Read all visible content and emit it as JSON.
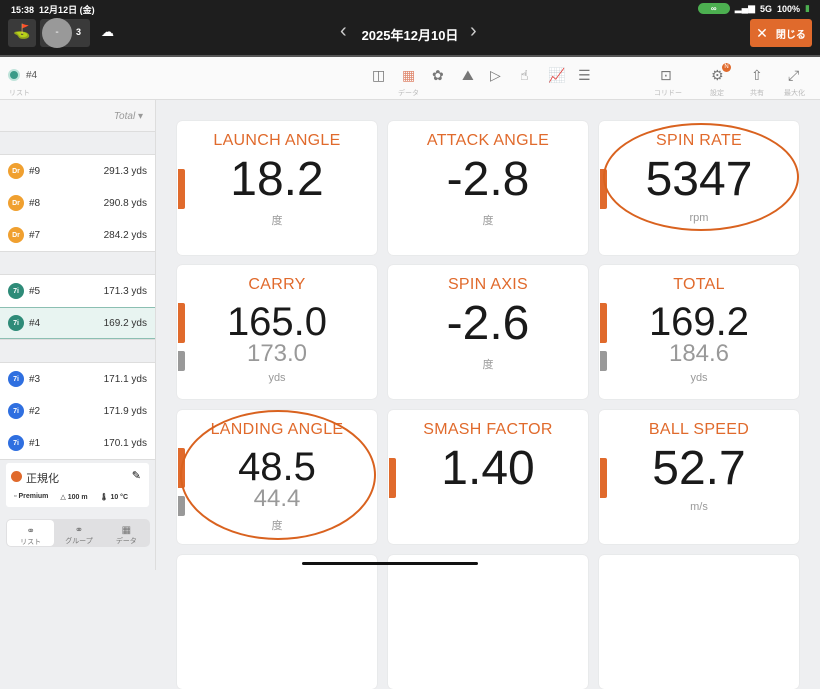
{
  "status": {
    "time": "15:38",
    "date": "12月12日 (金)",
    "signal": "5G",
    "battery": "100%"
  },
  "header": {
    "counter": "3",
    "minus": "-",
    "date": "2025年12月10日",
    "close_label": "閉じる"
  },
  "toolbar": {
    "shot": "#4",
    "list_label": "リスト",
    "data_label": "データ",
    "corridor_label": "コリドー",
    "settings_label": "設定",
    "settings_badge": "N",
    "share_label": "共有",
    "maximize_label": "最大化"
  },
  "sidebar": {
    "sort_label": "Total",
    "groups": [
      [
        {
          "club": "Dr",
          "shot": "#9",
          "value": "291.3 yds"
        },
        {
          "club": "Dr",
          "shot": "#8",
          "value": "290.8 yds"
        },
        {
          "club": "Dr",
          "shot": "#7",
          "value": "284.2 yds"
        }
      ],
      [
        {
          "club": "7i",
          "shot": "#5",
          "value": "171.3 yds"
        },
        {
          "club": "7i",
          "shot": "#4",
          "value": "169.2 yds"
        }
      ],
      [
        {
          "club": "7i",
          "shot": "#3",
          "value": "171.1 yds"
        },
        {
          "club": "7i",
          "shot": "#2",
          "value": "171.9 yds"
        },
        {
          "club": "7i",
          "shot": "#1",
          "value": "170.1 yds"
        }
      ]
    ],
    "normalize": {
      "title": "正規化",
      "ball": "Premium",
      "altitude": "100 m",
      "temp": "10 °C"
    },
    "tabs": [
      "リスト",
      "グループ",
      "データ"
    ]
  },
  "colors": {
    "accent": "#e06a2c",
    "driver": "#f0a030",
    "iron_a": "#2e8b78",
    "iron_b": "#2f6fe0"
  },
  "metrics": [
    {
      "title": "LAUNCH ANGLE",
      "value": "18.2",
      "unit": "度"
    },
    {
      "title": "ATTACK ANGLE",
      "value": "-2.8",
      "unit": "度"
    },
    {
      "title": "SPIN RATE",
      "value": "5347",
      "unit": "rpm"
    },
    {
      "title": "CARRY",
      "value": "165.0",
      "sub": "173.0",
      "unit": "yds"
    },
    {
      "title": "SPIN AXIS",
      "value": "-2.6",
      "unit": "度"
    },
    {
      "title": "TOTAL",
      "value": "169.2",
      "sub": "184.6",
      "unit": "yds"
    },
    {
      "title": "LANDING ANGLE",
      "value": "48.5",
      "sub": "44.4",
      "unit": "度"
    },
    {
      "title": "SMASH FACTOR",
      "value": "1.40",
      "unit": ""
    },
    {
      "title": "BALL SPEED",
      "value": "52.7",
      "unit": "m/s"
    }
  ]
}
